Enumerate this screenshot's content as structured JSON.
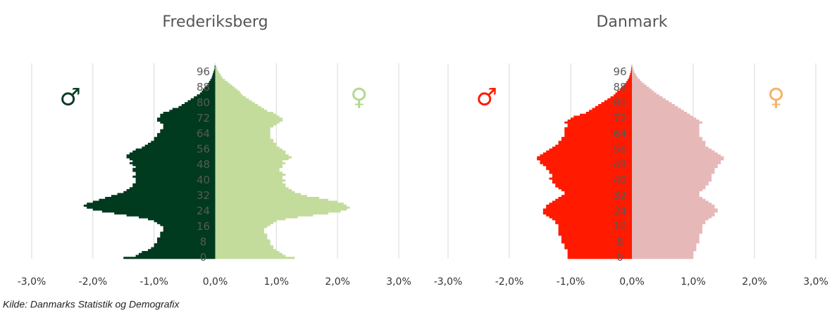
{
  "source": "Kilde: Danmarks Statistik og Demografix",
  "chart_data": [
    {
      "type": "bar",
      "orientation": "horizontal",
      "title": "Frederiksberg",
      "categories": [
        0,
        null,
        null,
        null,
        null,
        null,
        null,
        null,
        8,
        null,
        null,
        null,
        null,
        null,
        null,
        null,
        16,
        null,
        null,
        null,
        null,
        null,
        null,
        null,
        24,
        null,
        null,
        null,
        null,
        null,
        null,
        null,
        32,
        null,
        null,
        null,
        null,
        null,
        null,
        null,
        40,
        null,
        null,
        null,
        null,
        null,
        null,
        null,
        48,
        null,
        null,
        null,
        null,
        null,
        null,
        null,
        56,
        null,
        null,
        null,
        null,
        null,
        null,
        null,
        64,
        null,
        null,
        null,
        null,
        null,
        null,
        null,
        72,
        null,
        null,
        null,
        null,
        null,
        null,
        null,
        80,
        null,
        null,
        null,
        null,
        null,
        null,
        null,
        88,
        null,
        null,
        null,
        null,
        null,
        null,
        null,
        96,
        null,
        null,
        null
      ],
      "series": [
        {
          "name": "♂",
          "color": "#003a1f",
          "legend_color": "#0d3b26",
          "values": [
            -1.5,
            -1.3,
            -1.25,
            -1.2,
            -1.1,
            -1.05,
            -1.0,
            -1.0,
            -0.95,
            -0.95,
            -0.95,
            -0.9,
            -0.9,
            -0.9,
            -0.85,
            -0.85,
            -0.85,
            -0.9,
            -0.95,
            -1.0,
            -1.1,
            -1.25,
            -1.45,
            -1.65,
            -1.85,
            -2.0,
            -2.1,
            -2.15,
            -2.1,
            -2.0,
            -1.9,
            -1.8,
            -1.7,
            -1.6,
            -1.5,
            -1.45,
            -1.4,
            -1.35,
            -1.35,
            -1.3,
            -1.3,
            -1.3,
            -1.35,
            -1.3,
            -1.3,
            -1.35,
            -1.35,
            -1.3,
            -1.35,
            -1.4,
            -1.35,
            -1.4,
            -1.45,
            -1.45,
            -1.4,
            -1.35,
            -1.3,
            -1.2,
            -1.15,
            -1.1,
            -1.05,
            -1.0,
            -1.0,
            -0.95,
            -0.95,
            -0.9,
            -0.9,
            -0.85,
            -0.85,
            -0.85,
            -0.9,
            -0.95,
            -0.95,
            -0.9,
            -0.9,
            -0.85,
            -0.75,
            -0.7,
            -0.6,
            -0.55,
            -0.5,
            -0.45,
            -0.4,
            -0.35,
            -0.3,
            -0.25,
            -0.22,
            -0.2,
            -0.17,
            -0.14,
            -0.12,
            -0.1,
            -0.08,
            -0.06,
            -0.05,
            -0.04,
            -0.03,
            -0.02,
            -0.01,
            -0.01
          ]
        },
        {
          "name": "♀",
          "color": "#c3dc9c",
          "legend_color": "#b5d88f",
          "values": [
            1.3,
            1.15,
            1.1,
            1.05,
            1.0,
            0.95,
            0.95,
            0.9,
            0.9,
            0.9,
            0.85,
            0.85,
            0.85,
            0.8,
            0.8,
            0.8,
            0.85,
            0.9,
            0.95,
            1.0,
            1.15,
            1.35,
            1.6,
            1.85,
            2.05,
            2.15,
            2.2,
            2.15,
            2.1,
            2.0,
            1.85,
            1.7,
            1.5,
            1.4,
            1.3,
            1.25,
            1.2,
            1.15,
            1.15,
            1.1,
            1.15,
            1.1,
            1.1,
            1.15,
            1.1,
            1.05,
            1.05,
            1.1,
            1.1,
            1.15,
            1.1,
            1.2,
            1.25,
            1.2,
            1.15,
            1.15,
            1.1,
            1.05,
            1.0,
            1.0,
            0.95,
            0.95,
            0.9,
            0.9,
            0.9,
            0.9,
            0.9,
            0.9,
            0.95,
            1.0,
            1.05,
            1.1,
            1.1,
            1.05,
            1.0,
            0.95,
            0.85,
            0.8,
            0.75,
            0.7,
            0.65,
            0.6,
            0.55,
            0.5,
            0.45,
            0.42,
            0.4,
            0.36,
            0.32,
            0.28,
            0.24,
            0.2,
            0.16,
            0.12,
            0.1,
            0.08,
            0.06,
            0.04,
            0.03,
            0.02
          ]
        }
      ],
      "xlim": [
        -3,
        3
      ],
      "xticks": [
        {
          "value": -3,
          "label": "-3,0%"
        },
        {
          "value": -2,
          "label": "-2,0%"
        },
        {
          "value": -1,
          "label": "-1,0%"
        },
        {
          "value": 0,
          "label": "0,0%"
        },
        {
          "value": 1,
          "label": "1,0%"
        },
        {
          "value": 2,
          "label": "2,0%"
        },
        {
          "value": 3,
          "label": "3,0%"
        }
      ],
      "grid": true
    },
    {
      "type": "bar",
      "orientation": "horizontal",
      "title": "Danmark",
      "categories": [
        0,
        null,
        null,
        null,
        null,
        null,
        null,
        null,
        8,
        null,
        null,
        null,
        null,
        null,
        null,
        null,
        16,
        null,
        null,
        null,
        null,
        null,
        null,
        null,
        24,
        null,
        null,
        null,
        null,
        null,
        null,
        null,
        32,
        null,
        null,
        null,
        null,
        null,
        null,
        null,
        40,
        null,
        null,
        null,
        null,
        null,
        null,
        null,
        48,
        null,
        null,
        null,
        null,
        null,
        null,
        null,
        56,
        null,
        null,
        null,
        null,
        null,
        null,
        null,
        64,
        null,
        null,
        null,
        null,
        null,
        null,
        null,
        72,
        null,
        null,
        null,
        null,
        null,
        null,
        null,
        80,
        null,
        null,
        null,
        null,
        null,
        null,
        null,
        88,
        null,
        null,
        null,
        null,
        null,
        null,
        null,
        96,
        null,
        null,
        null
      ],
      "series": [
        {
          "name": "♂",
          "color": "#ff1a00",
          "legend_color": "#ff1a00",
          "values": [
            -1.05,
            -1.05,
            -1.05,
            -1.05,
            -1.05,
            -1.1,
            -1.1,
            -1.1,
            -1.15,
            -1.15,
            -1.15,
            -1.15,
            -1.2,
            -1.2,
            -1.2,
            -1.2,
            -1.2,
            -1.2,
            -1.25,
            -1.25,
            -1.3,
            -1.35,
            -1.4,
            -1.45,
            -1.45,
            -1.45,
            -1.4,
            -1.4,
            -1.35,
            -1.3,
            -1.25,
            -1.2,
            -1.15,
            -1.1,
            -1.1,
            -1.15,
            -1.2,
            -1.25,
            -1.25,
            -1.3,
            -1.3,
            -1.35,
            -1.3,
            -1.3,
            -1.35,
            -1.35,
            -1.4,
            -1.4,
            -1.45,
            -1.5,
            -1.5,
            -1.55,
            -1.55,
            -1.5,
            -1.45,
            -1.4,
            -1.35,
            -1.3,
            -1.25,
            -1.2,
            -1.2,
            -1.15,
            -1.15,
            -1.1,
            -1.1,
            -1.1,
            -1.1,
            -1.1,
            -1.05,
            -1.05,
            -1.1,
            -1.05,
            -1.0,
            -0.95,
            -0.85,
            -0.75,
            -0.7,
            -0.65,
            -0.6,
            -0.55,
            -0.5,
            -0.45,
            -0.4,
            -0.35,
            -0.3,
            -0.27,
            -0.24,
            -0.2,
            -0.17,
            -0.14,
            -0.11,
            -0.09,
            -0.07,
            -0.05,
            -0.04,
            -0.03,
            -0.02,
            -0.015,
            -0.01,
            -0.005
          ]
        },
        {
          "name": "♀",
          "color": "#e6b9b8",
          "legend_color": "#f5b26b",
          "values": [
            1.0,
            1.0,
            1.0,
            1.0,
            1.05,
            1.05,
            1.05,
            1.05,
            1.1,
            1.1,
            1.1,
            1.1,
            1.1,
            1.15,
            1.15,
            1.15,
            1.15,
            1.15,
            1.2,
            1.2,
            1.25,
            1.3,
            1.35,
            1.35,
            1.4,
            1.4,
            1.35,
            1.35,
            1.3,
            1.25,
            1.2,
            1.15,
            1.1,
            1.1,
            1.1,
            1.15,
            1.2,
            1.2,
            1.25,
            1.25,
            1.3,
            1.3,
            1.3,
            1.3,
            1.35,
            1.35,
            1.35,
            1.4,
            1.4,
            1.45,
            1.45,
            1.5,
            1.5,
            1.45,
            1.4,
            1.35,
            1.3,
            1.25,
            1.2,
            1.2,
            1.2,
            1.15,
            1.15,
            1.1,
            1.1,
            1.1,
            1.1,
            1.1,
            1.1,
            1.1,
            1.15,
            1.1,
            1.05,
            1.0,
            0.95,
            0.9,
            0.85,
            0.8,
            0.75,
            0.7,
            0.65,
            0.6,
            0.55,
            0.5,
            0.45,
            0.4,
            0.36,
            0.32,
            0.28,
            0.24,
            0.2,
            0.16,
            0.13,
            0.1,
            0.08,
            0.06,
            0.04,
            0.03,
            0.02,
            0.01
          ]
        }
      ],
      "xlim": [
        -3,
        3
      ],
      "xticks": [
        {
          "value": -3,
          "label": "-3,0%"
        },
        {
          "value": -2,
          "label": "-2,0%"
        },
        {
          "value": -1,
          "label": "-1,0%"
        },
        {
          "value": 0,
          "label": "0,0%"
        },
        {
          "value": 1,
          "label": "1,0%"
        },
        {
          "value": 2,
          "label": "2,0%"
        },
        {
          "value": 3,
          "label": "3,0%"
        }
      ],
      "grid": true
    }
  ]
}
